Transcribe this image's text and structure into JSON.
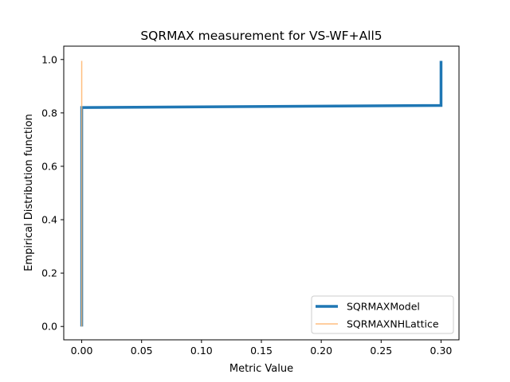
{
  "chart_data": {
    "type": "line",
    "title": "SQRMAX measurement for VS-WF+All5",
    "xlabel": "Metric Value",
    "ylabel": "Empirical Distribution function",
    "xlim": [
      -0.015,
      0.315
    ],
    "ylim": [
      -0.05,
      1.05
    ],
    "xticks": [
      0.0,
      0.05,
      0.1,
      0.15,
      0.2,
      0.25,
      0.3
    ],
    "xtick_labels": [
      "0.00",
      "0.05",
      "0.10",
      "0.15",
      "0.20",
      "0.25",
      "0.30"
    ],
    "yticks": [
      0.0,
      0.2,
      0.4,
      0.6,
      0.8,
      1.0
    ],
    "ytick_labels": [
      "0.0",
      "0.2",
      "0.4",
      "0.6",
      "0.8",
      "1.0"
    ],
    "grid": false,
    "legend_position": "bottom-right",
    "series": [
      {
        "name": "SQRMAXModel",
        "color": "#1f77b4",
        "points": [
          [
            0.0,
            0.0
          ],
          [
            0.0,
            0.82
          ],
          [
            0.3,
            0.828
          ],
          [
            0.3,
            0.995
          ]
        ]
      },
      {
        "name": "SQRMAXNHLattice",
        "color": "#ffbb78",
        "points": [
          [
            0.0,
            0.0
          ],
          [
            0.0,
            0.995
          ]
        ]
      }
    ]
  }
}
